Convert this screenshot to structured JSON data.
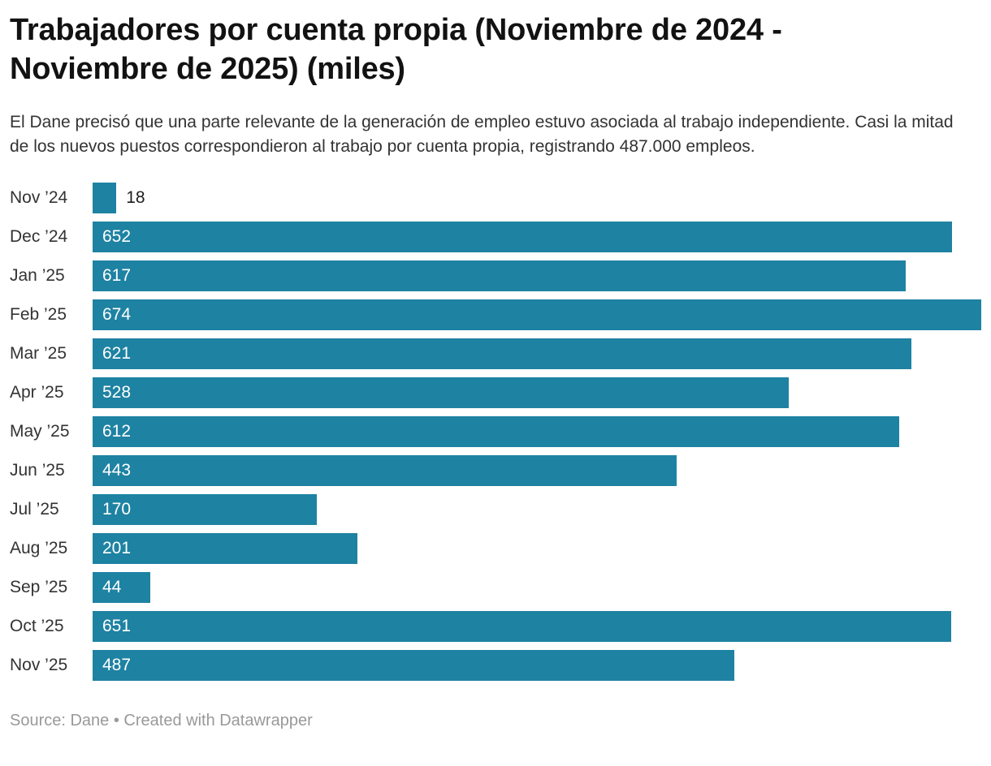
{
  "header": {
    "title": "Trabajadores por cuenta propia (Noviembre de 2024 - Noviembre de 2025) (miles)",
    "description": "El Dane precisó que una parte relevante de la generación de empleo estuvo asociada al trabajo independiente. Casi la mitad de los nuevos puestos correspondieron al trabajo por cuenta propia, registrando 487.000 empleos."
  },
  "chart_data": {
    "type": "bar",
    "orientation": "horizontal",
    "title": "Trabajadores por cuenta propia (Noviembre de 2024 - Noviembre de 2025) (miles)",
    "categories": [
      "Nov ’24",
      "Dec ’24",
      "Jan ’25",
      "Feb ’25",
      "Mar ’25",
      "Apr ’25",
      "May ’25",
      "Jun ’25",
      "Jul ’25",
      "Aug ’25",
      "Sep ’25",
      "Oct ’25",
      "Nov ’25"
    ],
    "values": [
      18,
      652,
      617,
      674,
      621,
      528,
      612,
      443,
      170,
      201,
      44,
      651,
      487
    ],
    "xlabel": "",
    "ylabel": "",
    "xlim": [
      0,
      674
    ],
    "grid": false,
    "legend": false,
    "bar_color": "#1e82a2",
    "value_label_position": "inside-start",
    "value_label_color_inside": "#ffffff",
    "value_label_color_outside": "#1d1d1d"
  },
  "footer": {
    "text": "Source: Dane • Created with Datawrapper"
  }
}
